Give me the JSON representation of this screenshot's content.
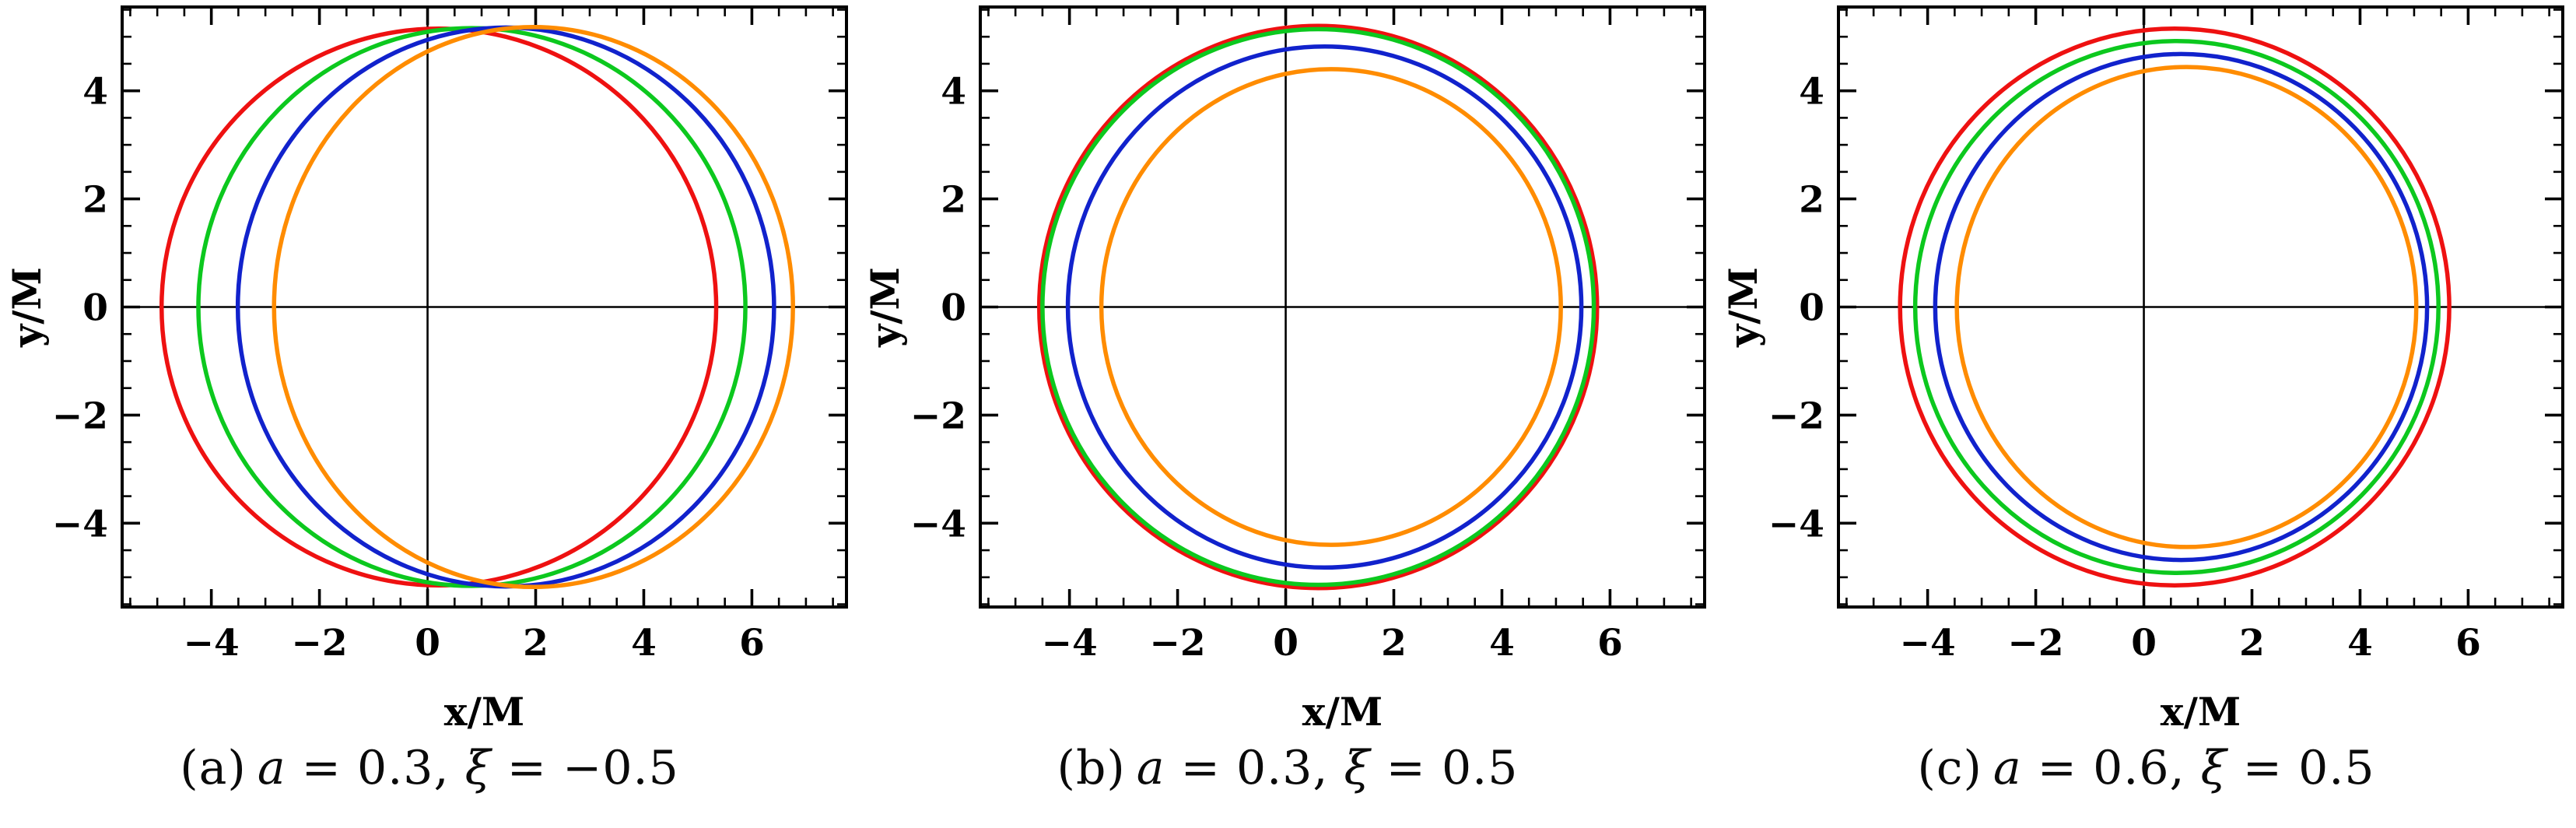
{
  "figure": {
    "background": "#ffffff",
    "panels": [
      {
        "id": "a",
        "caption_text": "(a) a = 0.3, ξ = −0.5",
        "caption_parts": [
          {
            "text": "(a)",
            "italic": false,
            "prefix": true
          },
          {
            "text": "a",
            "italic": true
          },
          {
            "text": " = 0.3, ",
            "italic": false
          },
          {
            "text": "ξ",
            "italic": true
          },
          {
            "text": " = −0.5",
            "italic": false
          }
        ]
      },
      {
        "id": "b",
        "caption_text": "(b) a = 0.3, ξ = 0.5",
        "caption_parts": [
          {
            "text": "(b)",
            "italic": false,
            "prefix": true
          },
          {
            "text": "a",
            "italic": true
          },
          {
            "text": " = 0.3, ",
            "italic": false
          },
          {
            "text": "ξ",
            "italic": true
          },
          {
            "text": " = 0.5",
            "italic": false
          }
        ]
      },
      {
        "id": "c",
        "caption_text": "(c) a = 0.6, ξ = 0.5",
        "caption_parts": [
          {
            "text": "(c)",
            "italic": false,
            "prefix": true
          },
          {
            "text": "a",
            "italic": true
          },
          {
            "text": " = 0.6, ",
            "italic": false
          },
          {
            "text": "ξ",
            "italic": true
          },
          {
            "text": " = 0.5",
            "italic": false
          }
        ]
      }
    ]
  },
  "chart_data": [
    {
      "type": "line",
      "subtype": "closed-contours",
      "description": "Black hole shadow boundary curves for a = 0.3, xi = -0.5",
      "caption": "(a) a = 0.3, ξ = −0.5",
      "params": {
        "a": 0.3,
        "xi": -0.5
      },
      "xlabel": "x/M",
      "ylabel": "y/M",
      "xlim": [
        -5.65,
        7.75
      ],
      "ylim": [
        -5.55,
        5.55
      ],
      "xticks": [
        -4,
        -2,
        0,
        2,
        4,
        6
      ],
      "yticks": [
        -4,
        -2,
        0,
        2,
        4
      ],
      "minor_tick_step": 0.5,
      "axis_cross": [
        0,
        0
      ],
      "grid": false,
      "legend": "none",
      "series": [
        {
          "name": "curve-red",
          "color": "#ee1111",
          "center_x": 0.21,
          "center_y": 0,
          "radius_x": 5.13,
          "radius_y": 5.15
        },
        {
          "name": "curve-green",
          "color": "#0cc81e",
          "center_x": 0.82,
          "center_y": 0,
          "radius_x": 5.06,
          "radius_y": 5.16
        },
        {
          "name": "curve-blue",
          "color": "#1122cc",
          "center_x": 1.45,
          "center_y": 0,
          "radius_x": 4.96,
          "radius_y": 5.17
        },
        {
          "name": "curve-orange",
          "color": "#ff8c00",
          "center_x": 1.96,
          "center_y": 0,
          "radius_x": 4.8,
          "radius_y": 5.18
        }
      ]
    },
    {
      "type": "line",
      "subtype": "closed-contours",
      "description": "Black hole shadow boundary curves for a = 0.3, xi = 0.5",
      "caption": "(b) a = 0.3, ξ = 0.5",
      "params": {
        "a": 0.3,
        "xi": 0.5
      },
      "xlabel": "x/M",
      "ylabel": "y/M",
      "xlim": [
        -5.65,
        7.75
      ],
      "ylim": [
        -5.55,
        5.55
      ],
      "xticks": [
        -4,
        -2,
        0,
        2,
        4,
        6
      ],
      "yticks": [
        -4,
        -2,
        0,
        2,
        4
      ],
      "minor_tick_step": 0.5,
      "axis_cross": [
        0,
        0
      ],
      "grid": false,
      "legend": "none",
      "series": [
        {
          "name": "curve-red",
          "color": "#ee1111",
          "center_x": 0.6,
          "center_y": 0,
          "radius_x": 5.16,
          "radius_y": 5.2
        },
        {
          "name": "curve-green",
          "color": "#0cc81e",
          "center_x": 0.6,
          "center_y": 0,
          "radius_x": 5.1,
          "radius_y": 5.14
        },
        {
          "name": "curve-blue",
          "color": "#1122cc",
          "center_x": 0.72,
          "center_y": 0,
          "radius_x": 4.75,
          "radius_y": 4.82
        },
        {
          "name": "curve-orange",
          "color": "#ff8c00",
          "center_x": 0.84,
          "center_y": 0,
          "radius_x": 4.25,
          "radius_y": 4.4
        }
      ]
    },
    {
      "type": "line",
      "subtype": "closed-contours",
      "description": "Black hole shadow boundary curves for a = 0.6, xi = 0.5",
      "caption": "(c) a = 0.6, ξ = 0.5",
      "params": {
        "a": 0.6,
        "xi": 0.5
      },
      "xlabel": "x/M",
      "ylabel": "y/M",
      "xlim": [
        -5.65,
        7.75
      ],
      "ylim": [
        -5.55,
        5.55
      ],
      "xticks": [
        -4,
        -2,
        0,
        2,
        4,
        6
      ],
      "yticks": [
        -4,
        -2,
        0,
        2,
        4
      ],
      "minor_tick_step": 0.5,
      "axis_cross": [
        0,
        0
      ],
      "grid": false,
      "legend": "none",
      "series": [
        {
          "name": "curve-red",
          "color": "#ee1111",
          "center_x": 0.57,
          "center_y": 0,
          "radius_x": 5.08,
          "radius_y": 5.15
        },
        {
          "name": "curve-green",
          "color": "#0cc81e",
          "center_x": 0.61,
          "center_y": 0,
          "radius_x": 4.84,
          "radius_y": 4.92
        },
        {
          "name": "curve-blue",
          "color": "#1122cc",
          "center_x": 0.69,
          "center_y": 0,
          "radius_x": 4.55,
          "radius_y": 4.68
        },
        {
          "name": "curve-orange",
          "color": "#ff8c00",
          "center_x": 0.79,
          "center_y": 0,
          "radius_x": 4.25,
          "radius_y": 4.44
        }
      ]
    }
  ]
}
